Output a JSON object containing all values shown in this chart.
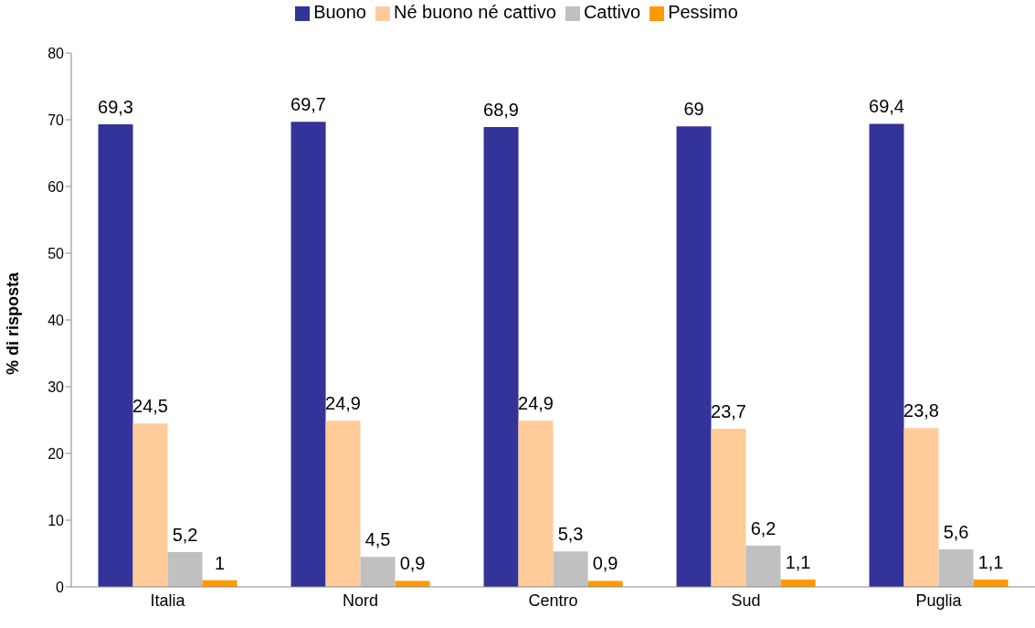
{
  "chart_data": {
    "type": "bar",
    "ylabel": "% di risposta",
    "categories": [
      "Italia",
      "Nord",
      "Centro",
      "Sud",
      "Puglia"
    ],
    "series": [
      {
        "name": "Buono",
        "color": "#333399",
        "values": [
          69.3,
          69.7,
          68.9,
          69,
          69.4
        ],
        "value_labels": [
          "69,3",
          "69,7",
          "68,9",
          "69",
          "69,4"
        ]
      },
      {
        "name": "Né buono né cattivo",
        "color": "#ffcc99",
        "values": [
          24.5,
          24.9,
          24.9,
          23.7,
          23.8
        ],
        "value_labels": [
          "24,5",
          "24,9",
          "24,9",
          "23,7",
          "23,8"
        ]
      },
      {
        "name": "Cattivo",
        "color": "#c0c0c0",
        "values": [
          5.2,
          4.5,
          5.3,
          6.2,
          5.6
        ],
        "value_labels": [
          "5,2",
          "4,5",
          "5,3",
          "6,2",
          "5,6"
        ]
      },
      {
        "name": "Pessimo",
        "color": "#ff9900",
        "values": [
          1,
          0.9,
          0.9,
          1.1,
          1.1
        ],
        "value_labels": [
          "1",
          "0,9",
          "0,9",
          "1,1",
          "1,1"
        ]
      }
    ],
    "ylim": [
      0,
      80
    ],
    "yticks": [
      0,
      10,
      20,
      30,
      40,
      50,
      60,
      70,
      80
    ],
    "grid": false,
    "legend": "top"
  }
}
